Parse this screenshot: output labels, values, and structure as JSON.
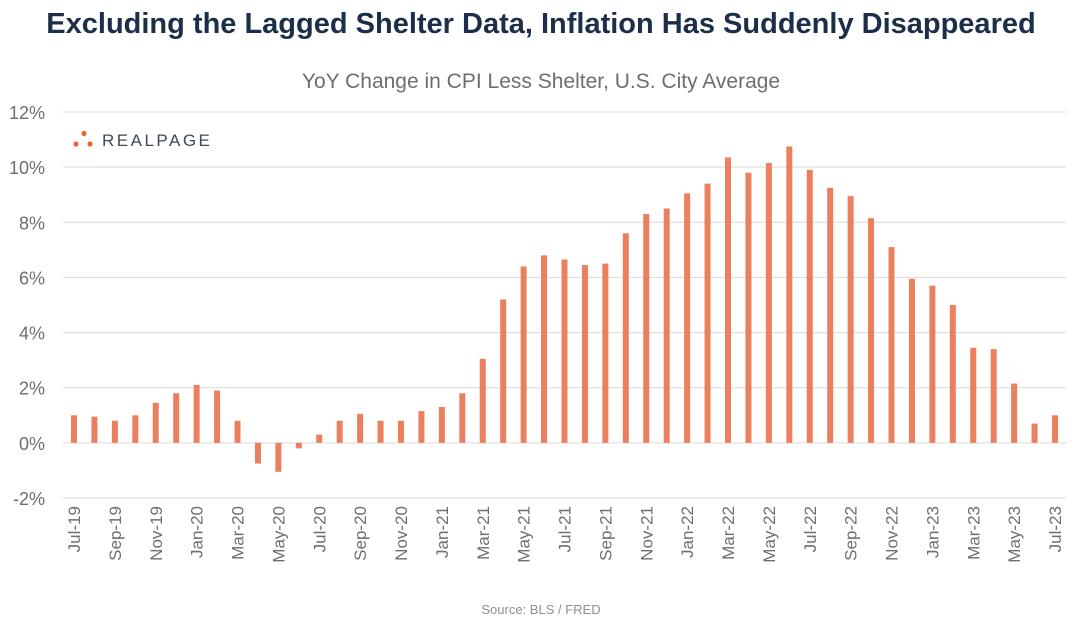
{
  "title": "Excluding the Lagged Shelter Data, Inflation Has Suddenly Disappeared",
  "brand": {
    "name": "REALPAGE",
    "dot_color": "#e8643a"
  },
  "source": "Source: BLS / FRED",
  "colors": {
    "bar": "#ec7f5e",
    "grid": "#d9d9d9",
    "axis_text": "#6b6e72"
  },
  "chart_data": {
    "type": "bar",
    "title": "YoY Change in CPI Less Shelter, U.S. City Average",
    "xlabel": "",
    "ylabel": "",
    "ylim": [
      -2,
      12
    ],
    "yticks": [
      -2,
      0,
      2,
      4,
      6,
      8,
      10,
      12
    ],
    "ytick_labels": [
      "-2%",
      "0%",
      "2%",
      "4%",
      "6%",
      "8%",
      "10%",
      "12%"
    ],
    "grid": true,
    "categories": [
      "Jul-19",
      "Aug-19",
      "Sep-19",
      "Oct-19",
      "Nov-19",
      "Dec-19",
      "Jan-20",
      "Feb-20",
      "Mar-20",
      "Apr-20",
      "May-20",
      "Jun-20",
      "Jul-20",
      "Aug-20",
      "Sep-20",
      "Oct-20",
      "Nov-20",
      "Dec-20",
      "Jan-21",
      "Feb-21",
      "Mar-21",
      "Apr-21",
      "May-21",
      "Jun-21",
      "Jul-21",
      "Aug-21",
      "Sep-21",
      "Oct-21",
      "Nov-21",
      "Dec-21",
      "Jan-22",
      "Feb-22",
      "Mar-22",
      "Apr-22",
      "May-22",
      "Jun-22",
      "Jul-22",
      "Aug-22",
      "Sep-22",
      "Oct-22",
      "Nov-22",
      "Dec-22",
      "Jan-23",
      "Feb-23",
      "Mar-23",
      "Apr-23",
      "May-23",
      "Jun-23",
      "Jul-23"
    ],
    "tick_labels": [
      "Jul-19",
      "Sep-19",
      "Nov-19",
      "Jan-20",
      "Mar-20",
      "May-20",
      "Jul-20",
      "Sep-20",
      "Nov-20",
      "Jan-21",
      "Mar-21",
      "May-21",
      "Jul-21",
      "Sep-21",
      "Nov-21",
      "Jan-22",
      "Mar-22",
      "May-22",
      "Jul-22",
      "Sep-22",
      "Nov-22",
      "Jan-23",
      "Mar-23",
      "May-23",
      "Jul-23"
    ],
    "values": [
      1.0,
      0.95,
      0.8,
      1.0,
      1.45,
      1.8,
      2.1,
      1.9,
      0.8,
      -0.75,
      -1.05,
      -0.2,
      0.3,
      0.8,
      1.05,
      0.8,
      0.8,
      1.15,
      1.3,
      1.8,
      3.05,
      5.2,
      6.4,
      6.8,
      6.65,
      6.45,
      6.5,
      7.6,
      8.3,
      8.5,
      9.05,
      9.4,
      10.35,
      9.8,
      10.15,
      10.75,
      9.9,
      9.25,
      8.95,
      8.15,
      7.1,
      5.95,
      5.7,
      5.0,
      3.45,
      3.4,
      2.15,
      0.7,
      1.0
    ]
  }
}
